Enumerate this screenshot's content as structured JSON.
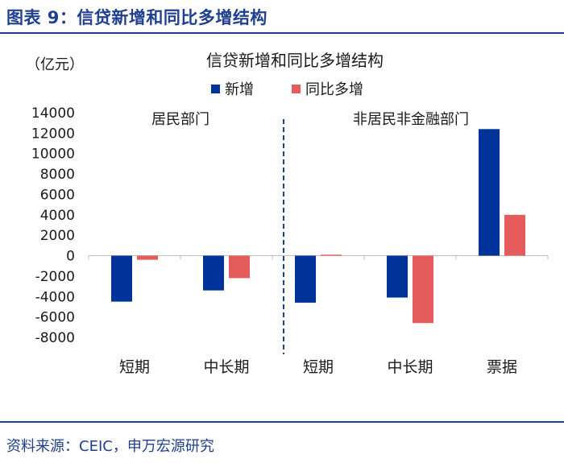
{
  "header": {
    "figure_title": "图表 9：信贷新增和同比多增结构",
    "source": "资料来源：CEIC，申万宏源研究"
  },
  "chart_data": {
    "type": "bar",
    "title": "信贷新增和同比多增结构",
    "ylabel": "（亿元）",
    "ylim": [
      -8000,
      14000
    ],
    "yticks": [
      14000,
      12000,
      10000,
      8000,
      6000,
      4000,
      2000,
      0,
      -2000,
      -4000,
      -6000,
      -8000
    ],
    "groups": [
      "居民部门",
      "非居民非金融部门"
    ],
    "categories": [
      "短期",
      "中长期",
      "短期",
      "中长期",
      "票据"
    ],
    "category_group": [
      0,
      0,
      1,
      1,
      1
    ],
    "series": [
      {
        "name": "新增",
        "values": [
          -4500,
          -3400,
          -4600,
          -4100,
          12400
        ],
        "color": "#003399"
      },
      {
        "name": "同比多增",
        "values": [
          -400,
          -2200,
          100,
          -6600,
          4000
        ],
        "color": "#e65c5c"
      }
    ],
    "legend": "top-center",
    "grid": false
  }
}
